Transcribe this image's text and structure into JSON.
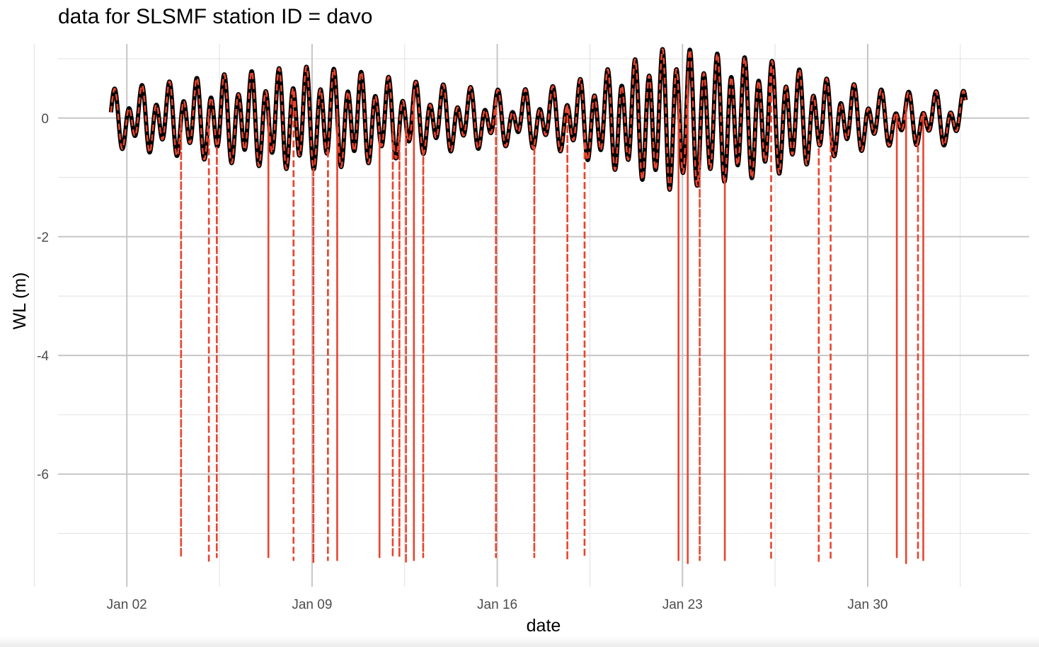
{
  "chart_data": {
    "type": "line",
    "title": "data for SLSMF station ID = davo",
    "xlabel": "date",
    "ylabel": "WL (m)",
    "x_ticks": [
      "Jan 02",
      "Jan 09",
      "Jan 16",
      "Jan 23",
      "Jan 30"
    ],
    "x_tick_days": [
      2,
      9,
      16,
      23,
      30
    ],
    "y_ticks": [
      "0",
      "-2",
      "-4",
      "-6"
    ],
    "y_tick_values": [
      0,
      -2,
      -4,
      -6
    ],
    "xlim_days": [
      -0.6,
      36.1
    ],
    "ylim": [
      -7.9,
      1.25
    ],
    "grid": true,
    "series": [
      {
        "style": "solid",
        "color": "#000000",
        "x_start_day": 1.4,
        "x_end_day": 33.7,
        "semidiurnal_amplitude_m": [
          [
            1.4,
            0.33
          ],
          [
            6.0,
            0.6
          ],
          [
            8.5,
            0.72
          ],
          [
            10.5,
            0.65
          ],
          [
            13.0,
            0.45
          ],
          [
            16.5,
            0.3
          ],
          [
            18.5,
            0.4
          ],
          [
            21.0,
            0.8
          ],
          [
            22.5,
            1.05
          ],
          [
            24.0,
            0.95
          ],
          [
            26.5,
            0.8
          ],
          [
            28.5,
            0.5
          ],
          [
            31.0,
            0.28
          ],
          [
            33.7,
            0.3
          ]
        ]
      },
      {
        "style": "dashed",
        "color": "#e8452e",
        "x_start_day": 1.4,
        "x_end_day": 33.7,
        "spike_days": [
          4.05,
          5.1,
          5.4,
          7.35,
          8.3,
          9.05,
          9.6,
          9.95,
          11.55,
          12.05,
          12.3,
          12.55,
          12.85,
          13.2,
          15.95,
          17.4,
          18.65,
          19.3,
          22.85,
          23.2,
          23.65,
          24.6,
          26.35,
          28.15,
          28.6,
          31.1,
          31.45,
          31.9,
          32.1
        ],
        "spike_depths_m": [
          -7.4,
          -7.5,
          -7.4,
          -7.4,
          -7.45,
          -7.5,
          -7.45,
          -7.45,
          -7.4,
          -7.4,
          -7.4,
          -7.5,
          -7.45,
          -7.4,
          -7.4,
          -7.4,
          -7.45,
          -7.4,
          -7.45,
          -7.5,
          -7.45,
          -7.45,
          -7.45,
          -7.5,
          -7.45,
          -7.4,
          -7.5,
          -7.45,
          -7.45
        ]
      }
    ]
  }
}
